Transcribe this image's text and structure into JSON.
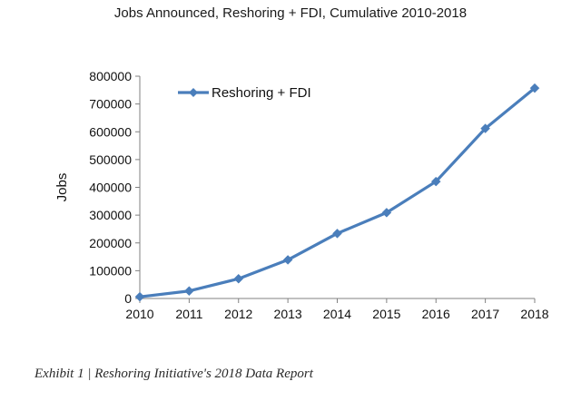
{
  "chart_data": {
    "type": "line",
    "title": "Jobs Announced, Reshoring + FDI, Cumulative 2010-2018",
    "xlabel": "",
    "ylabel": "Jobs",
    "x": [
      "2010",
      "2011",
      "2012",
      "2013",
      "2014",
      "2015",
      "2016",
      "2017",
      "2018"
    ],
    "series": [
      {
        "name": "Reshoring + FDI",
        "color": "#4a7ebb",
        "marker": "diamond",
        "values": [
          6000,
          27000,
          71000,
          139000,
          234000,
          309000,
          421000,
          612000,
          757000
        ]
      }
    ],
    "ylim": [
      0,
      800000
    ],
    "yticks": [
      0,
      100000,
      200000,
      300000,
      400000,
      500000,
      600000,
      700000,
      800000
    ],
    "ytick_labels": [
      "0",
      "100000",
      "200000",
      "300000",
      "400000",
      "500000",
      "600000",
      "700000",
      "800000"
    ],
    "grid": false,
    "legend": "top-left inside"
  },
  "caption": "Exhibit 1 | Reshoring Initiative's 2018 Data Report"
}
